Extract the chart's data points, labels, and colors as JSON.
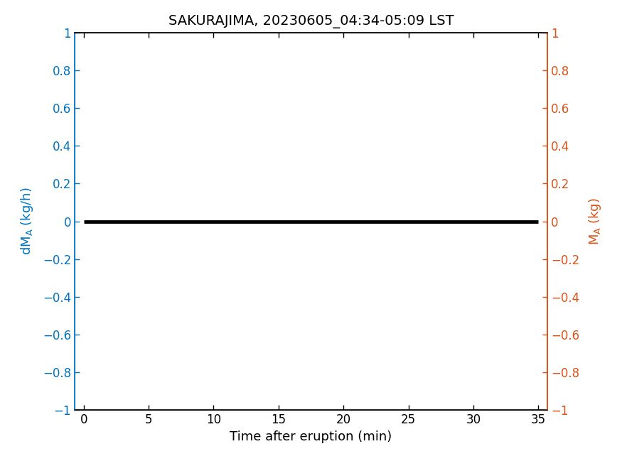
{
  "title": "SAKURAJIMA, 20230605_04:34-05:09 LST",
  "xlabel": "Time after eruption (min)",
  "left_color": "#0072BD",
  "right_color": "#D95319",
  "line_color": "#000000",
  "line_width": 3.5,
  "xlim": [
    -0.7,
    35.7
  ],
  "ylim_left": [
    -1,
    1
  ],
  "ylim_right": [
    -1,
    1
  ],
  "xticks": [
    0,
    5,
    10,
    15,
    20,
    25,
    30,
    35
  ],
  "yticks": [
    -1,
    -0.8,
    -0.6,
    -0.4,
    -0.2,
    0,
    0.2,
    0.4,
    0.6,
    0.8,
    1
  ],
  "x_data": [
    0,
    35
  ],
  "y_data": [
    0,
    0
  ],
  "bg_color": "#FFFFFF",
  "title_fontsize": 14,
  "label_fontsize": 13,
  "tick_fontsize": 12
}
